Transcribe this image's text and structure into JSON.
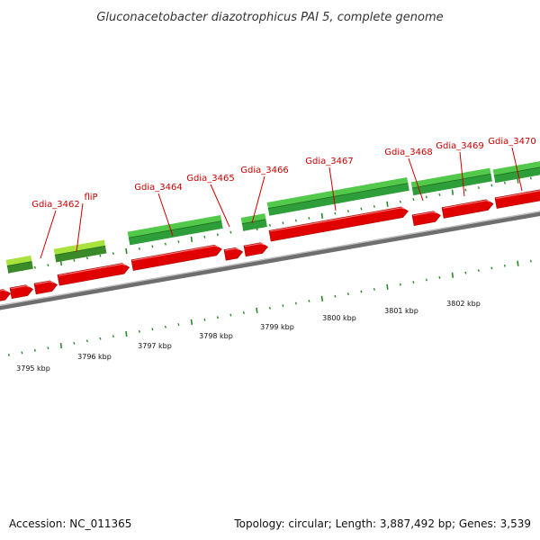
{
  "title": "Gluconacetobacter diazotrophicus PAI 5, complete genome",
  "footer": {
    "accession": "Accession: NC_011365",
    "summary": "Topology: circular; Length: 3,887,492 bp; Genes: 3,539"
  },
  "colors": {
    "forward_gene": "#2e9e3a",
    "forward_gene_highlight": "#a8e23c",
    "reverse_gene": "#e00000",
    "backbone": "#888888",
    "tick": "#2a8a2a",
    "label": "#cc0000"
  },
  "gene_labels": [
    "Gdia_3462",
    "fliP",
    "Gdia_3464",
    "Gdia_3465",
    "Gdia_3466",
    "Gdia_3467",
    "Gdia_3468",
    "Gdia_3469",
    "Gdia_3470"
  ],
  "scale_labels": [
    "3795 kbp",
    "3796 kbp",
    "3797 kbp",
    "3798 kbp",
    "3799 kbp",
    "3800 kbp",
    "3801 kbp",
    "3802 kbp"
  ]
}
